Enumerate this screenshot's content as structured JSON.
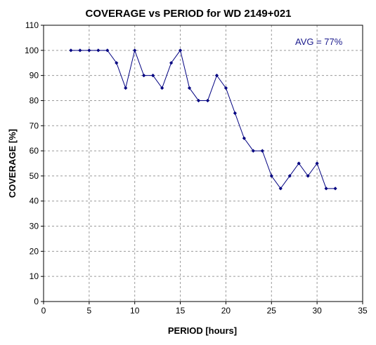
{
  "chart_data": {
    "type": "line",
    "title": "COVERAGE vs PERIOD for WD 2149+021",
    "xlabel": "PERIOD [hours]",
    "ylabel": "COVERAGE [%]",
    "xlim": [
      0,
      35
    ],
    "ylim": [
      0,
      110
    ],
    "xticks": [
      0,
      5,
      10,
      15,
      20,
      25,
      30,
      35
    ],
    "yticks": [
      0,
      10,
      20,
      30,
      40,
      50,
      60,
      70,
      80,
      90,
      100,
      110
    ],
    "grid": true,
    "legend": "none",
    "annotation": "AVG = 77%",
    "series": [
      {
        "x": [
          3,
          4,
          5,
          6,
          7,
          8,
          9,
          10,
          11,
          12,
          13,
          14,
          15,
          16,
          17,
          18,
          19,
          20,
          21,
          22,
          23,
          24,
          25,
          26,
          27,
          28,
          29,
          30,
          31,
          32
        ],
        "values": [
          100,
          100,
          100,
          100,
          100,
          95,
          85,
          100,
          90,
          90,
          85,
          95,
          100,
          85,
          80,
          80,
          90,
          85,
          75,
          65,
          60,
          60,
          50,
          45,
          50,
          55,
          50,
          55,
          45,
          45
        ],
        "color": "#000080"
      }
    ]
  }
}
